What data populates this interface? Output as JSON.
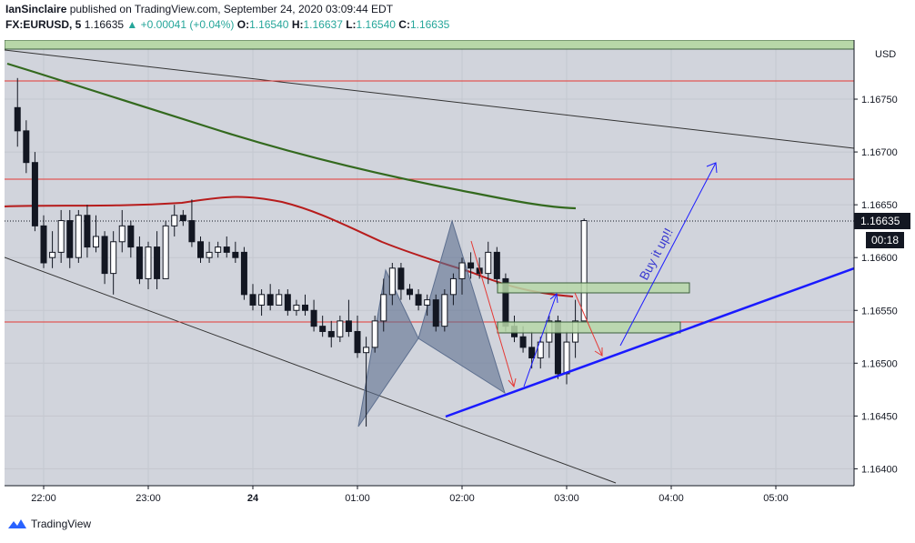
{
  "header": {
    "line1_user": "IanSinclaire",
    "line1_rest": " published on TradingView.com, September 24, 2020 03:09:44 EDT",
    "symbol": "FX:EURUSD, 5",
    "last": "1.16635",
    "change": "▲ +0.00041 (+0.04%)",
    "o_label": "O:",
    "o": "1.16540",
    "h_label": "H:",
    "h": "1.16637",
    "l_label": "L:",
    "l": "1.16540",
    "c_label": "C:",
    "c": "1.16635"
  },
  "footer": {
    "brand": "TradingView"
  },
  "axis": {
    "currency": "USD",
    "price_tag": "1.16635",
    "countdown": "00:18"
  },
  "annotation": {
    "text": "Buy it up!!"
  },
  "colors": {
    "background": "#d1d4dc",
    "up": "#ffffff",
    "down": "#131722",
    "ma_long": "#33691e",
    "ma_short": "#b71c1c",
    "hline": "#e53935",
    "zone_fill": "#b7d7a8",
    "harmonic": "#5d6f8f",
    "trend_blue": "#1a1aff"
  },
  "chart_data": {
    "type": "candlestick",
    "symbol": "FX:EURUSD",
    "interval": "5",
    "x_axis": {
      "ticks": [
        "22:00",
        "23:00",
        "24",
        "01:00",
        "02:00",
        "03:00",
        "04:00",
        "05:00"
      ]
    },
    "y_axis": {
      "ticks": [
        1.164,
        1.1645,
        1.165,
        1.1655,
        1.166,
        1.1665,
        1.167,
        1.1675
      ],
      "range": [
        1.16384,
        1.16806
      ]
    },
    "candles": [
      {
        "t": "21:45",
        "o": 1.16742,
        "h": 1.1677,
        "l": 1.16705,
        "c": 1.1672
      },
      {
        "t": "21:50",
        "o": 1.1672,
        "h": 1.1673,
        "l": 1.1668,
        "c": 1.1669
      },
      {
        "t": "21:55",
        "o": 1.1669,
        "h": 1.167,
        "l": 1.16625,
        "c": 1.1663
      },
      {
        "t": "22:00",
        "o": 1.1663,
        "h": 1.1664,
        "l": 1.1659,
        "c": 1.16595
      },
      {
        "t": "22:05",
        "o": 1.166,
        "h": 1.16625,
        "l": 1.1659,
        "c": 1.16605
      },
      {
        "t": "22:10",
        "o": 1.16605,
        "h": 1.16645,
        "l": 1.16595,
        "c": 1.16635
      },
      {
        "t": "22:15",
        "o": 1.16635,
        "h": 1.16645,
        "l": 1.1659,
        "c": 1.166
      },
      {
        "t": "22:20",
        "o": 1.166,
        "h": 1.16645,
        "l": 1.16595,
        "c": 1.1664
      },
      {
        "t": "22:25",
        "o": 1.1664,
        "h": 1.1665,
        "l": 1.166,
        "c": 1.1661
      },
      {
        "t": "22:30",
        "o": 1.1661,
        "h": 1.1664,
        "l": 1.16605,
        "c": 1.1662
      },
      {
        "t": "22:35",
        "o": 1.1662,
        "h": 1.16625,
        "l": 1.16575,
        "c": 1.16585
      },
      {
        "t": "22:40",
        "o": 1.16585,
        "h": 1.16625,
        "l": 1.16565,
        "c": 1.16615
      },
      {
        "t": "22:45",
        "o": 1.16615,
        "h": 1.16645,
        "l": 1.16605,
        "c": 1.1663
      },
      {
        "t": "22:50",
        "o": 1.1663,
        "h": 1.16635,
        "l": 1.166,
        "c": 1.1661
      },
      {
        "t": "22:55",
        "o": 1.1661,
        "h": 1.1662,
        "l": 1.16575,
        "c": 1.1658
      },
      {
        "t": "23:00",
        "o": 1.1658,
        "h": 1.16615,
        "l": 1.1657,
        "c": 1.1661
      },
      {
        "t": "23:05",
        "o": 1.1661,
        "h": 1.16625,
        "l": 1.1657,
        "c": 1.1658
      },
      {
        "t": "23:10",
        "o": 1.1658,
        "h": 1.16635,
        "l": 1.1658,
        "c": 1.1663
      },
      {
        "t": "23:15",
        "o": 1.1663,
        "h": 1.1665,
        "l": 1.1662,
        "c": 1.1664
      },
      {
        "t": "23:20",
        "o": 1.1664,
        "h": 1.16645,
        "l": 1.1663,
        "c": 1.16635
      },
      {
        "t": "23:25",
        "o": 1.16635,
        "h": 1.16655,
        "l": 1.1661,
        "c": 1.16615
      },
      {
        "t": "23:30",
        "o": 1.16615,
        "h": 1.1662,
        "l": 1.16595,
        "c": 1.166
      },
      {
        "t": "23:35",
        "o": 1.166,
        "h": 1.16615,
        "l": 1.16595,
        "c": 1.16605
      },
      {
        "t": "23:40",
        "o": 1.16605,
        "h": 1.16615,
        "l": 1.166,
        "c": 1.1661
      },
      {
        "t": "23:45",
        "o": 1.1661,
        "h": 1.1662,
        "l": 1.166,
        "c": 1.16605
      },
      {
        "t": "23:50",
        "o": 1.16605,
        "h": 1.16615,
        "l": 1.16595,
        "c": 1.166
      },
      {
        "t": "23:55",
        "o": 1.16605,
        "h": 1.1661,
        "l": 1.1656,
        "c": 1.16565
      },
      {
        "t": "24:00",
        "o": 1.16565,
        "h": 1.16575,
        "l": 1.1655,
        "c": 1.16555
      },
      {
        "t": "00:05",
        "o": 1.16555,
        "h": 1.1657,
        "l": 1.16545,
        "c": 1.16565
      },
      {
        "t": "00:10",
        "o": 1.16565,
        "h": 1.16575,
        "l": 1.1655,
        "c": 1.16555
      },
      {
        "t": "00:15",
        "o": 1.16555,
        "h": 1.1657,
        "l": 1.16555,
        "c": 1.16565
      },
      {
        "t": "00:20",
        "o": 1.16565,
        "h": 1.1657,
        "l": 1.16545,
        "c": 1.1655
      },
      {
        "t": "00:25",
        "o": 1.1655,
        "h": 1.1656,
        "l": 1.16545,
        "c": 1.16555
      },
      {
        "t": "00:30",
        "o": 1.16555,
        "h": 1.16565,
        "l": 1.16545,
        "c": 1.1655
      },
      {
        "t": "00:35",
        "o": 1.1655,
        "h": 1.1656,
        "l": 1.1653,
        "c": 1.16535
      },
      {
        "t": "00:40",
        "o": 1.16535,
        "h": 1.16545,
        "l": 1.16525,
        "c": 1.1653
      },
      {
        "t": "00:45",
        "o": 1.1653,
        "h": 1.1654,
        "l": 1.16515,
        "c": 1.16525
      },
      {
        "t": "00:50",
        "o": 1.16525,
        "h": 1.16545,
        "l": 1.1652,
        "c": 1.1654
      },
      {
        "t": "00:55",
        "o": 1.1654,
        "h": 1.1656,
        "l": 1.16525,
        "c": 1.1653
      },
      {
        "t": "01:00",
        "o": 1.1653,
        "h": 1.16545,
        "l": 1.16505,
        "c": 1.1651
      },
      {
        "t": "01:05",
        "o": 1.1651,
        "h": 1.16525,
        "l": 1.1644,
        "c": 1.16515
      },
      {
        "t": "01:10",
        "o": 1.16515,
        "h": 1.16545,
        "l": 1.1651,
        "c": 1.1654
      },
      {
        "t": "01:15",
        "o": 1.1654,
        "h": 1.1658,
        "l": 1.1653,
        "c": 1.16565
      },
      {
        "t": "01:20",
        "o": 1.16565,
        "h": 1.16595,
        "l": 1.16555,
        "c": 1.1659
      },
      {
        "t": "01:25",
        "o": 1.1659,
        "h": 1.16595,
        "l": 1.1656,
        "c": 1.1657
      },
      {
        "t": "01:30",
        "o": 1.1657,
        "h": 1.16575,
        "l": 1.1656,
        "c": 1.16565
      },
      {
        "t": "01:35",
        "o": 1.16565,
        "h": 1.1657,
        "l": 1.1655,
        "c": 1.16555
      },
      {
        "t": "01:40",
        "o": 1.16555,
        "h": 1.16565,
        "l": 1.16545,
        "c": 1.1656
      },
      {
        "t": "01:45",
        "o": 1.1656,
        "h": 1.16565,
        "l": 1.1653,
        "c": 1.16535
      },
      {
        "t": "01:50",
        "o": 1.16535,
        "h": 1.1657,
        "l": 1.1653,
        "c": 1.16565
      },
      {
        "t": "01:55",
        "o": 1.16565,
        "h": 1.16585,
        "l": 1.16555,
        "c": 1.1658
      },
      {
        "t": "02:00",
        "o": 1.1658,
        "h": 1.166,
        "l": 1.16565,
        "c": 1.16595
      },
      {
        "t": "02:05",
        "o": 1.16595,
        "h": 1.16605,
        "l": 1.1658,
        "c": 1.1659
      },
      {
        "t": "02:10",
        "o": 1.1659,
        "h": 1.166,
        "l": 1.1658,
        "c": 1.16585
      },
      {
        "t": "02:15",
        "o": 1.16585,
        "h": 1.16615,
        "l": 1.16575,
        "c": 1.16605
      },
      {
        "t": "02:20",
        "o": 1.16605,
        "h": 1.1661,
        "l": 1.16575,
        "c": 1.1658
      },
      {
        "t": "02:25",
        "o": 1.1658,
        "h": 1.16585,
        "l": 1.1653,
        "c": 1.16535
      },
      {
        "t": "02:30",
        "o": 1.16535,
        "h": 1.16545,
        "l": 1.1652,
        "c": 1.16525
      },
      {
        "t": "02:35",
        "o": 1.16525,
        "h": 1.16535,
        "l": 1.1651,
        "c": 1.16515
      },
      {
        "t": "02:40",
        "o": 1.16515,
        "h": 1.1653,
        "l": 1.16495,
        "c": 1.16505
      },
      {
        "t": "02:45",
        "o": 1.16505,
        "h": 1.16525,
        "l": 1.16495,
        "c": 1.1652
      },
      {
        "t": "02:50",
        "o": 1.1652,
        "h": 1.16545,
        "l": 1.16505,
        "c": 1.1654
      },
      {
        "t": "02:55",
        "o": 1.1654,
        "h": 1.16545,
        "l": 1.16485,
        "c": 1.1649
      },
      {
        "t": "03:00",
        "o": 1.1649,
        "h": 1.1653,
        "l": 1.1648,
        "c": 1.1652
      },
      {
        "t": "03:05",
        "o": 1.1652,
        "h": 1.1656,
        "l": 1.16505,
        "c": 1.1654
      },
      {
        "t": "03:10",
        "o": 1.1654,
        "h": 1.16637,
        "l": 1.1654,
        "c": 1.16635
      }
    ]
  }
}
